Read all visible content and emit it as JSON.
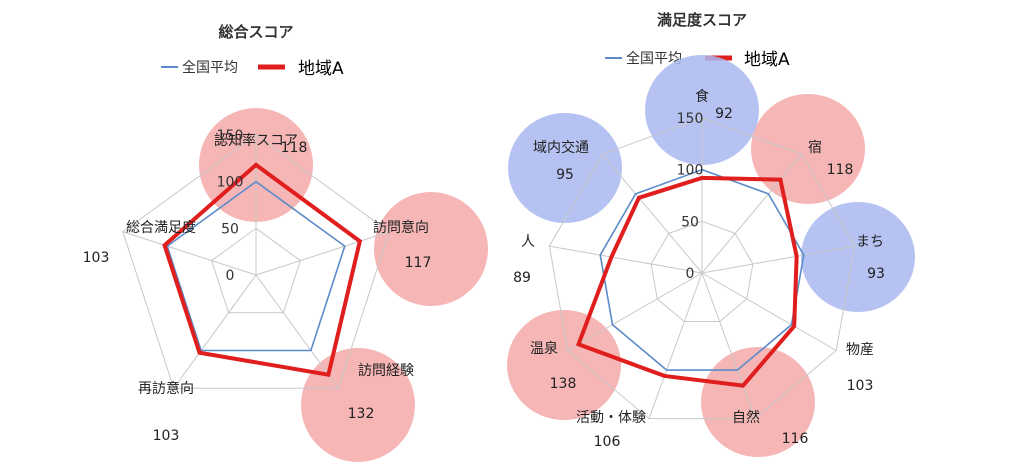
{
  "colors": {
    "national": "#5B8BC9",
    "region": "#E01E1E",
    "grid": "#C8C8C8",
    "bubble_red": "#F4A9A8",
    "bubble_blue": "#A9B8F0"
  },
  "chart_data": [
    {
      "type": "radar",
      "title": "総合スコア",
      "legend": [
        {
          "label": "全国平均",
          "style": "thin-blue"
        },
        {
          "label": "地域A",
          "style": "thick-red"
        }
      ],
      "rmax": 150,
      "ticks": [
        0,
        50,
        100,
        150
      ],
      "categories": [
        "認知率スコア",
        "訪問意向",
        "訪問経験",
        "再訪意向",
        "総合満足度"
      ],
      "value_labels": [
        "118",
        "117",
        "132",
        "103",
        "103"
      ],
      "series": [
        {
          "name": "全国平均",
          "values": [
            100,
            100,
            100,
            100,
            100
          ]
        },
        {
          "name": "地域A",
          "values": [
            118,
            117,
            132,
            103,
            103
          ]
        }
      ],
      "highlight": [
        "red",
        "red",
        "red",
        "none",
        "none"
      ]
    },
    {
      "type": "radar",
      "title": "満足度スコア",
      "legend": [
        {
          "label": "全国平均",
          "style": "thin-blue"
        },
        {
          "label": "地域A",
          "style": "thick-red"
        }
      ],
      "rmax": 150,
      "ticks": [
        0,
        50,
        100,
        150
      ],
      "categories": [
        "食",
        "宿",
        "まち",
        "物産",
        "自然",
        "活動・体験",
        "温泉",
        "人",
        "域内交通"
      ],
      "value_labels": [
        "92",
        "118",
        "93",
        "103",
        "116",
        "106",
        "138",
        "89",
        "95"
      ],
      "series": [
        {
          "name": "全国平均",
          "values": [
            100,
            100,
            100,
            100,
            100,
            100,
            100,
            100,
            100
          ]
        },
        {
          "name": "地域A",
          "values": [
            92,
            118,
            93,
            103,
            116,
            106,
            138,
            89,
            95
          ]
        }
      ],
      "highlight": [
        "blue",
        "red",
        "blue",
        "none",
        "red",
        "none",
        "red",
        "none",
        "blue"
      ]
    }
  ]
}
